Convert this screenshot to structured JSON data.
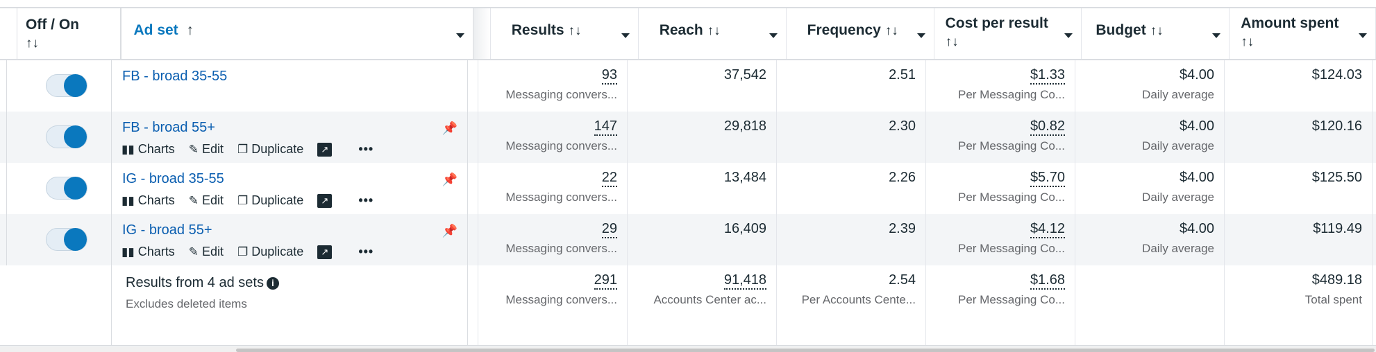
{
  "header": {
    "offon": "Off / On",
    "sort": "↑↓",
    "adset": "Ad set",
    "adset_sort": "↑",
    "results": "Results",
    "reach": "Reach",
    "frequency": "Frequency",
    "cost": "Cost per result",
    "budget": "Budget",
    "amount": "Amount spent"
  },
  "actions": {
    "charts": "Charts",
    "edit": "Edit",
    "duplicate": "Duplicate"
  },
  "rows": [
    {
      "on": true,
      "name": "FB - broad 35-55",
      "results": "93",
      "results_sub": "Messaging convers...",
      "reach": "37,542",
      "frequency": "2.51",
      "cost": "$1.33",
      "cost_sub": "Per Messaging Co...",
      "budget": "$4.00",
      "budget_sub": "Daily average",
      "amount": "$124.03"
    },
    {
      "on": true,
      "name": "FB - broad 55+",
      "results": "147",
      "results_sub": "Messaging convers...",
      "reach": "29,818",
      "frequency": "2.30",
      "cost": "$0.82",
      "cost_sub": "Per Messaging Co...",
      "budget": "$4.00",
      "budget_sub": "Daily average",
      "amount": "$120.16"
    },
    {
      "on": true,
      "name": "IG - broad 35-55",
      "results": "22",
      "results_sub": "Messaging convers...",
      "reach": "13,484",
      "frequency": "2.26",
      "cost": "$5.70",
      "cost_sub": "Per Messaging Co...",
      "budget": "$4.00",
      "budget_sub": "Daily average",
      "amount": "$125.50"
    },
    {
      "on": true,
      "name": "IG - broad 55+",
      "results": "29",
      "results_sub": "Messaging convers...",
      "reach": "16,409",
      "frequency": "2.39",
      "cost": "$4.12",
      "cost_sub": "Per Messaging Co...",
      "budget": "$4.00",
      "budget_sub": "Daily average",
      "amount": "$119.49"
    }
  ],
  "summary": {
    "title": "Results from 4 ad sets",
    "subtitle": "Excludes deleted items",
    "results": "291",
    "results_sub": "Messaging convers...",
    "reach": "91,418",
    "reach_sub": "Accounts Center ac...",
    "frequency": "2.54",
    "frequency_sub": "Per Accounts Cente...",
    "cost": "$1.68",
    "cost_sub": "Per Messaging Co...",
    "amount": "$489.18",
    "amount_sub": "Total spent"
  },
  "colors": {
    "accent": "#0a78be",
    "link": "#0a5eb0",
    "row_alt": "#f3f5f7"
  }
}
